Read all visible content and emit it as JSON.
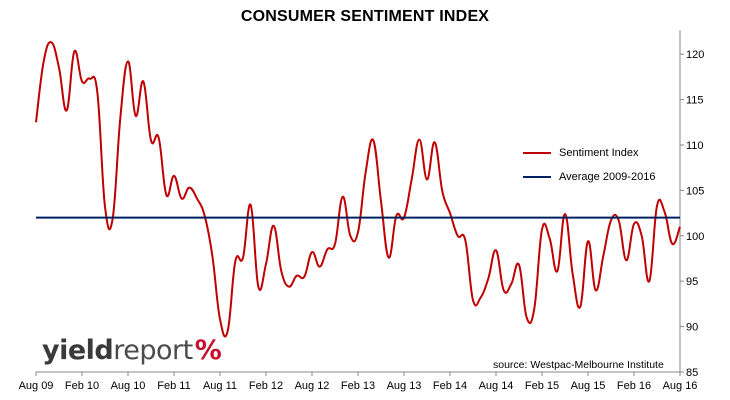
{
  "logo": {
    "part1": "yield",
    "part2": "report",
    "part3": "%"
  },
  "source": "source: Westpac-Melbourne Institute",
  "colors": {
    "sentiment": "#c00000",
    "average": "#002060",
    "grid": "#d9d9d9",
    "axis": "#888888"
  },
  "chart_data": {
    "type": "line",
    "title": "CONSUMER SENTIMENT INDEX",
    "xlabel": "",
    "ylabel": "",
    "ylim": [
      85,
      122
    ],
    "yticks": [
      85,
      90,
      95,
      100,
      105,
      110,
      115,
      120
    ],
    "y_axis_side": "right",
    "grid": false,
    "legend_position": "right",
    "x_tick_labels": [
      "Aug 09",
      "Feb 10",
      "Aug 10",
      "Feb 11",
      "Aug 11",
      "Feb 12",
      "Aug 12",
      "Feb 13",
      "Aug 13",
      "Feb 14",
      "Aug 14",
      "Feb 15",
      "Aug 15",
      "Feb 16",
      "Aug 16"
    ],
    "series": [
      {
        "name": "Sentiment Index",
        "x": [
          "2009-08",
          "2009-09",
          "2009-10",
          "2009-11",
          "2009-12",
          "2010-01",
          "2010-02",
          "2010-03",
          "2010-04",
          "2010-05",
          "2010-06",
          "2010-07",
          "2010-08",
          "2010-09",
          "2010-10",
          "2010-11",
          "2010-12",
          "2011-01",
          "2011-02",
          "2011-03",
          "2011-04",
          "2011-05",
          "2011-06",
          "2011-07",
          "2011-08",
          "2011-09",
          "2011-10",
          "2011-11",
          "2011-12",
          "2012-01",
          "2012-02",
          "2012-03",
          "2012-04",
          "2012-05",
          "2012-06",
          "2012-07",
          "2012-08",
          "2012-09",
          "2012-10",
          "2012-11",
          "2012-12",
          "2013-01",
          "2013-02",
          "2013-03",
          "2013-04",
          "2013-05",
          "2013-06",
          "2013-07",
          "2013-08",
          "2013-09",
          "2013-10",
          "2013-11",
          "2013-12",
          "2014-01",
          "2014-02",
          "2014-03",
          "2014-04",
          "2014-05",
          "2014-06",
          "2014-07",
          "2014-08",
          "2014-09",
          "2014-10",
          "2014-11",
          "2014-12",
          "2015-01",
          "2015-02",
          "2015-03",
          "2015-04",
          "2015-05",
          "2015-06",
          "2015-07",
          "2015-08",
          "2015-09",
          "2015-10",
          "2015-11",
          "2015-12",
          "2016-01",
          "2016-02",
          "2016-03",
          "2016-04",
          "2016-05",
          "2016-06",
          "2016-07",
          "2016-08"
        ],
        "values": [
          112.5,
          119.2,
          121.3,
          118.5,
          113.8,
          120.3,
          117.0,
          117.3,
          115.8,
          103.2,
          101.9,
          113.0,
          119.2,
          113.2,
          117.0,
          110.5,
          110.8,
          104.5,
          106.6,
          104.1,
          105.3,
          104.1,
          102.2,
          97.8,
          90.8,
          89.5,
          97.2,
          97.6,
          103.4,
          94.4,
          96.9,
          101.1,
          96.1,
          94.4,
          95.6,
          95.5,
          98.2,
          96.6,
          98.5,
          99.1,
          104.3,
          100.0,
          100.4,
          107.0,
          110.5,
          103.8,
          97.6,
          102.2,
          102.0,
          106.2,
          110.6,
          106.2,
          110.3,
          104.9,
          102.5,
          100.0,
          99.5,
          92.9,
          93.2,
          95.3,
          98.4,
          94.0,
          94.7,
          96.8,
          91.0,
          92.0,
          100.7,
          99.7,
          96.1,
          102.4,
          95.8,
          92.2,
          99.4,
          94.0,
          97.8,
          101.7,
          101.7,
          97.3,
          101.3,
          100.0,
          95.0,
          103.3,
          102.6,
          99.1,
          101.0
        ],
        "color": "#c00000"
      },
      {
        "name": "Average 2009-2016",
        "x": [
          "2009-08",
          "2016-08"
        ],
        "values": [
          102.0,
          102.0
        ],
        "color": "#002060"
      }
    ]
  }
}
